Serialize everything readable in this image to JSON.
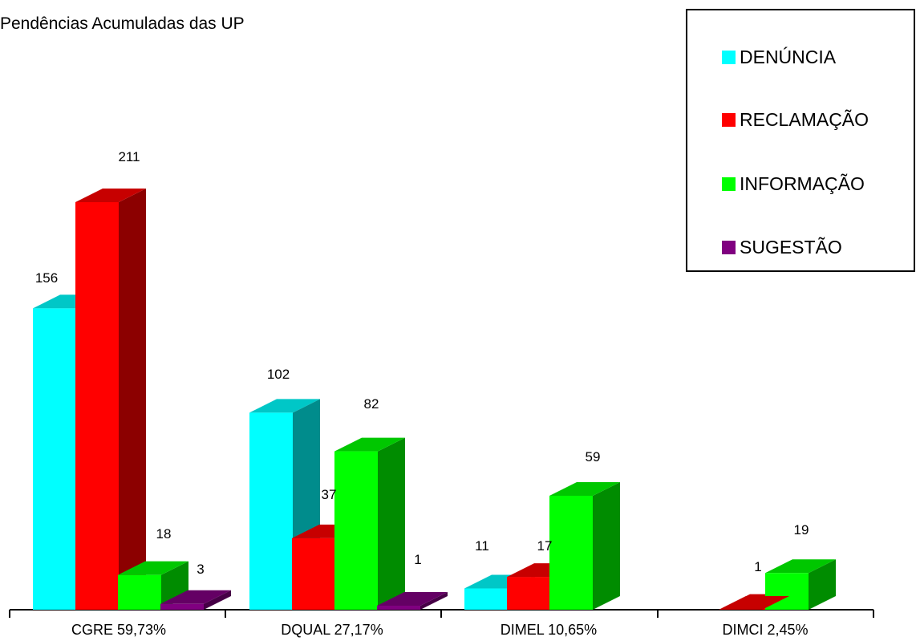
{
  "chart_data": {
    "type": "bar",
    "title": "Pendências Acumuladas das UP",
    "categories": [
      "CGRE 59,73%",
      "DQUAL 27,17%",
      "DIMEL 10,65%",
      "DIMCI 2,45%"
    ],
    "series": [
      {
        "name": "DENÚNCIA",
        "color": "#00FFFF",
        "values": [
          156,
          102,
          11,
          0
        ]
      },
      {
        "name": "RECLAMAÇÃO",
        "color": "#FF0000",
        "values": [
          211,
          37,
          17,
          1
        ]
      },
      {
        "name": "INFORMAÇÃO",
        "color": "#00FF00",
        "values": [
          18,
          82,
          59,
          19
        ]
      },
      {
        "name": "SUGESTÃO",
        "color": "#800080",
        "values": [
          3,
          1,
          0,
          0
        ]
      }
    ],
    "data_labels": [
      [
        "156",
        "211",
        "18",
        "3"
      ],
      [
        "102",
        "37",
        "82",
        "1"
      ],
      [
        "11",
        "17",
        "59",
        ""
      ],
      [
        "",
        "1",
        "19",
        ""
      ]
    ],
    "ylim": [
      0,
      211
    ],
    "legend_position": "top-right",
    "grid": false,
    "style": "3d-column"
  }
}
